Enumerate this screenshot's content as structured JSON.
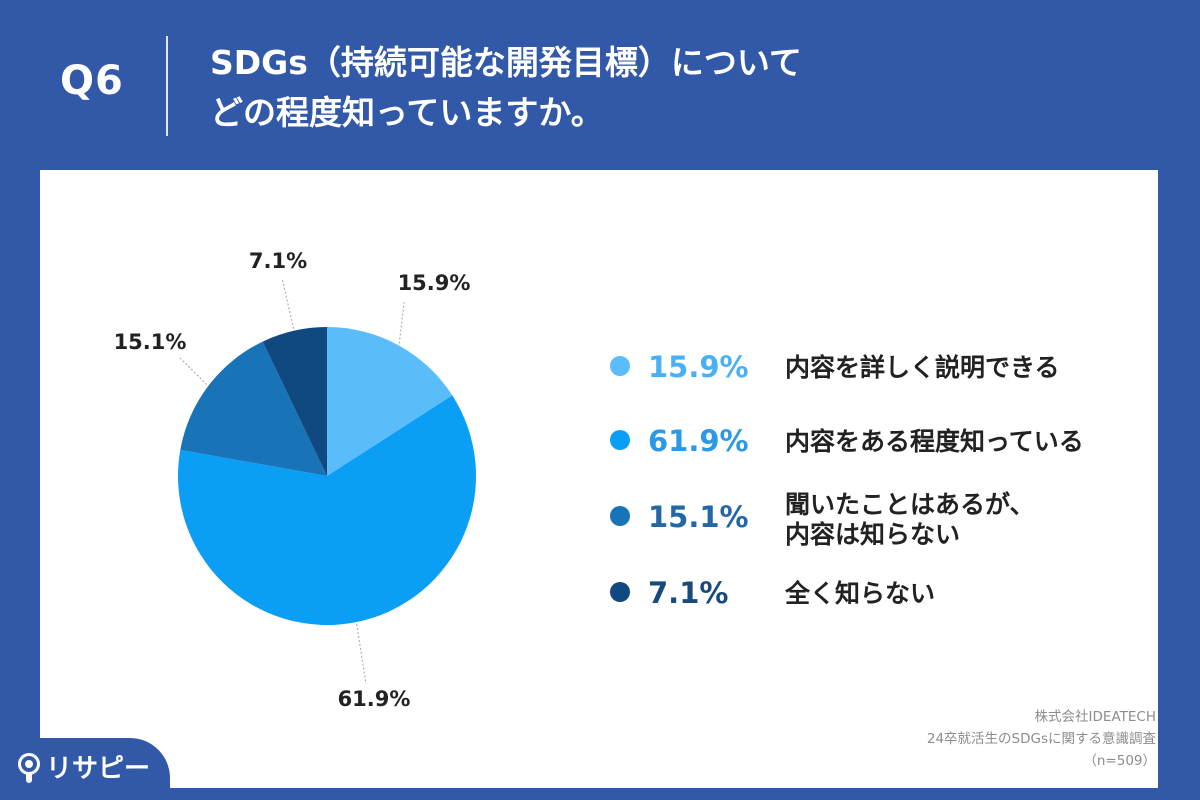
{
  "header": {
    "question_label": "Q6",
    "question_line1": "SDGs（持続可能な開発目標）について",
    "question_line2": "どの程度知っていますか。"
  },
  "chart_data": {
    "type": "pie",
    "title": "",
    "slices": [
      {
        "label": "内容を詳しく説明できる",
        "value": 15.9,
        "display": "15.9%",
        "color": "#5bbcfa",
        "pct_color": "#4ab0f5"
      },
      {
        "label": "内容をある程度知っている",
        "value": 61.9,
        "display": "61.9%",
        "color": "#0a9ff5",
        "pct_color": "#2b98e8"
      },
      {
        "label": "聞いたことはあるが、\n内容は知らない",
        "value": 15.1,
        "display": "15.1%",
        "color": "#1873b7",
        "pct_color": "#2267a8"
      },
      {
        "label": "全く知らない",
        "value": 7.1,
        "display": "7.1%",
        "color": "#0f4980",
        "pct_color": "#184a7e"
      }
    ],
    "legend_placement": "right"
  },
  "footer": {
    "company": "株式会社IDEATECH",
    "survey": "24卒就活生のSDGsに関する意識調査",
    "sample": "（n=509）"
  },
  "logo": {
    "text": "リサピー"
  }
}
